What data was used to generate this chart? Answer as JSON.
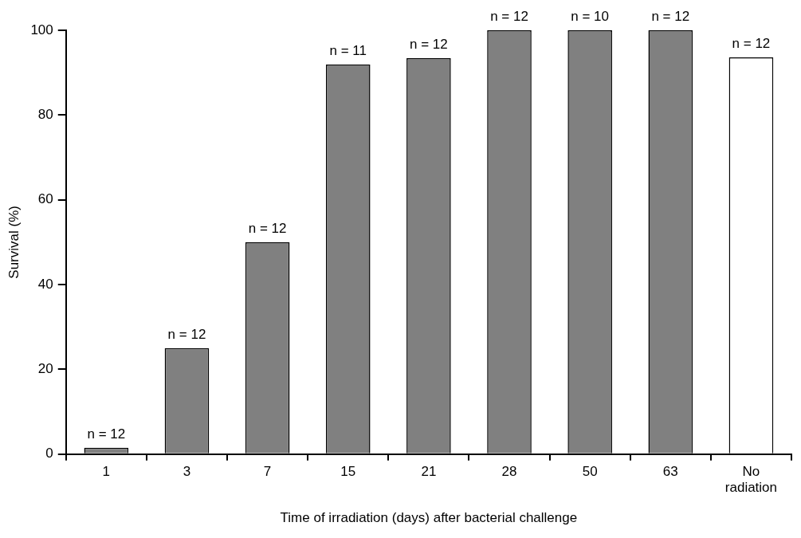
{
  "chart_data": {
    "type": "bar",
    "xlabel": "Time of irradiation (days) after bacterial challenge",
    "ylabel": "Survival (%)",
    "categories": [
      "1",
      "3",
      "7",
      "15",
      "21",
      "28",
      "50",
      "63",
      "No radiation"
    ],
    "values": [
      1.5,
      25,
      50,
      91.9,
      93.4,
      100,
      100,
      100,
      93.6
    ],
    "colors": [
      "#808080",
      "#808080",
      "#808080",
      "#808080",
      "#808080",
      "#808080",
      "#808080",
      "#808080",
      "#ffffff"
    ],
    "annotations": [
      {
        "text": "n = 12",
        "x": "1",
        "y": 1.5
      },
      {
        "text": "n = 12",
        "x": "3",
        "y": 25
      },
      {
        "text": "n = 12",
        "x": "7",
        "y": 50
      },
      {
        "text": "n = 11",
        "x": "15",
        "y": 91.9
      },
      {
        "text": "n = 12",
        "x": "21",
        "y": 93.4
      },
      {
        "text": "n = 12",
        "x": "28",
        "y": 100
      },
      {
        "text": "n = 10",
        "x": "50",
        "y": 100
      },
      {
        "text": "n = 12",
        "x": "63",
        "y": 100
      },
      {
        "text": "n = 12",
        "x": "No radiation",
        "y": 93.6
      }
    ],
    "ylim": [
      0,
      100
    ],
    "yticks": [
      0,
      20,
      40,
      60,
      80,
      100
    ],
    "grid": false,
    "legend": false
  }
}
